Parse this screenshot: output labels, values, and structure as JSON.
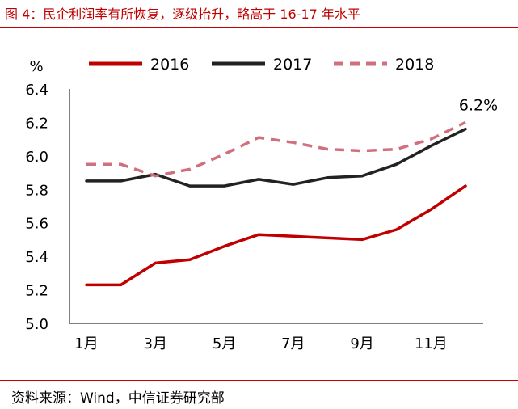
{
  "figure": {
    "title": "图 4：民企利润率有所恢复，逐级抬升，略高于 16-17 年水平",
    "source": "资料来源：Wind，中信证券研究部"
  },
  "chart_data": {
    "type": "line",
    "ylabel": "%",
    "xlabel": "",
    "ylim": [
      5.0,
      6.4
    ],
    "yticks": [
      "5.0",
      "5.2",
      "5.4",
      "5.6",
      "5.8",
      "6.0",
      "6.2",
      "6.4"
    ],
    "x": [
      1,
      2,
      3,
      4,
      5,
      6,
      7,
      8,
      9,
      10,
      11,
      12
    ],
    "xticks": [
      {
        "x": 1,
        "label": "1月"
      },
      {
        "x": 3,
        "label": "3月"
      },
      {
        "x": 5,
        "label": "5月"
      },
      {
        "x": 7,
        "label": "7月"
      },
      {
        "x": 9,
        "label": "9月"
      },
      {
        "x": 11,
        "label": "11月"
      }
    ],
    "grid": false,
    "legend_position": "top",
    "series": [
      {
        "name": "2016",
        "color": "#c00000",
        "style": "solid",
        "values": [
          5.23,
          5.23,
          5.36,
          5.38,
          5.46,
          5.53,
          5.52,
          5.51,
          5.5,
          5.56,
          5.68,
          5.82
        ]
      },
      {
        "name": "2017",
        "color": "#222222",
        "style": "solid",
        "values": [
          5.85,
          5.85,
          5.89,
          5.82,
          5.82,
          5.86,
          5.83,
          5.87,
          5.88,
          5.95,
          6.06,
          6.16
        ]
      },
      {
        "name": "2018",
        "color": "#d0707f",
        "style": "dashed",
        "values": [
          5.95,
          5.95,
          5.88,
          5.92,
          6.01,
          6.11,
          6.08,
          6.04,
          6.03,
          6.04,
          6.1,
          6.2
        ]
      }
    ],
    "annotations": [
      {
        "text": "6.2%",
        "series": "2018",
        "x": 12
      }
    ]
  }
}
